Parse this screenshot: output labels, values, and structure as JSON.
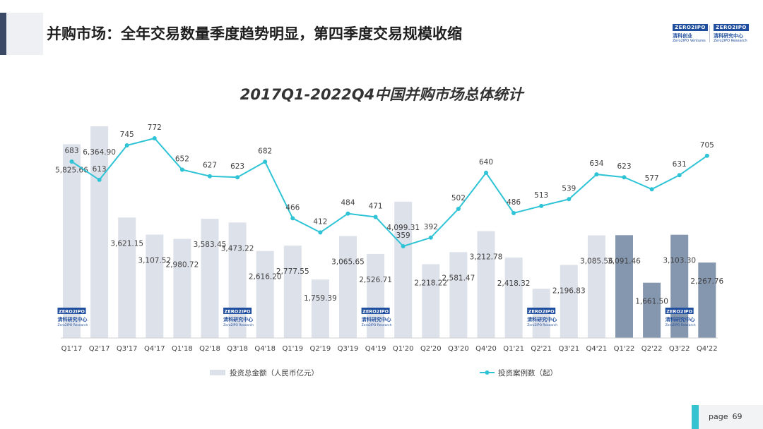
{
  "header": {
    "title": "并购市场：全年交易数量季度趋势明显，第四季度交易规模收缩",
    "logo_left": {
      "badge": "ZERO2IPO",
      "cn": "清科创业",
      "en": "Zero2IPO Ventures"
    },
    "logo_right": {
      "badge": "ZERO2IPO",
      "cn": "清科研究中心",
      "en": "Zero2IPO Research"
    }
  },
  "footer": {
    "page_label": "page",
    "page_number": "69"
  },
  "chart_watermark": {
    "badge": "ZERO2IPO",
    "cn": "清科研究中心",
    "en": "Zero2IPO Research"
  },
  "colors": {
    "bar_light": "#dde1ea",
    "bar_dark": "#8596af",
    "line": "#2ec4d6",
    "accent": "#35c4cf",
    "logo_blue": "#1f4e9e"
  },
  "chart_data": {
    "type": "bar",
    "title": "2017Q1-2022Q4中国并购市场总体统计",
    "categories": [
      "Q1'17",
      "Q2'17",
      "Q3'17",
      "Q4'17",
      "Q1'18",
      "Q2'18",
      "Q3'18",
      "Q4'18",
      "Q1'19",
      "Q2'19",
      "Q3'19",
      "Q4'19",
      "Q1'20",
      "Q2'20",
      "Q3'20",
      "Q4'20",
      "Q1'21",
      "Q2'21",
      "Q3'21",
      "Q4'21",
      "Q1'22",
      "Q2'22",
      "Q3'22",
      "Q4'22"
    ],
    "series": [
      {
        "name": "投资总金额（人民币亿元）",
        "type": "bar",
        "values": [
          5825.66,
          6364.9,
          3621.15,
          3107.52,
          2980.72,
          3583.45,
          3473.22,
          2616.2,
          2777.55,
          1759.39,
          3065.65,
          2526.71,
          4099.31,
          2218.22,
          2581.47,
          3212.78,
          2418.32,
          1480,
          2196.83,
          3085.56,
          3091.46,
          1661.5,
          3103.3,
          2267.76
        ],
        "labels": [
          "5,825.66",
          "6,364.90",
          "3,621.15",
          "3,107.52",
          "2,980.72",
          "3,583.45",
          "3,473.22",
          "2,616.20",
          "2,777.55",
          "1,759.39",
          "3,065.65",
          "2,526.71",
          "4,099.31",
          "2,218.22",
          "2,581.47",
          "3,212.78",
          "2,418.32",
          "",
          "2,196.83",
          "3,085.56",
          "3,091.46",
          "1,661.50",
          "3,103.30",
          "2,267.76"
        ],
        "highlight_from_index": 20
      },
      {
        "name": "投资案例数（起）",
        "type": "line",
        "values": [
          683,
          613,
          745,
          772,
          652,
          627,
          623,
          682,
          466,
          412,
          484,
          471,
          359,
          392,
          502,
          640,
          486,
          513,
          539,
          634,
          623,
          577,
          631,
          705
        ]
      }
    ],
    "legend_position": "bottom",
    "grid": false
  }
}
